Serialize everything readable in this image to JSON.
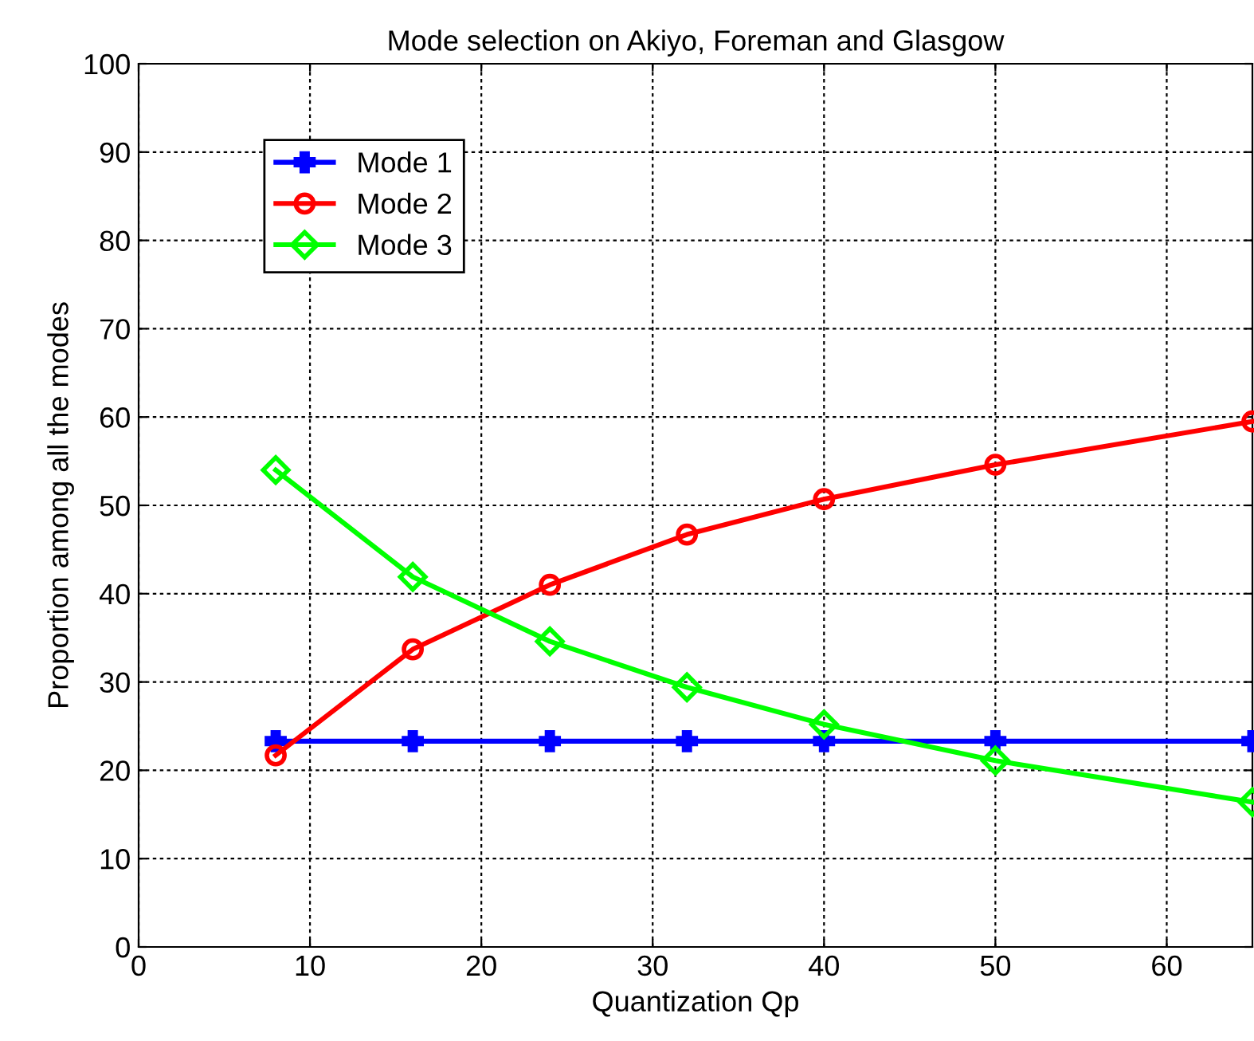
{
  "chart_data": {
    "type": "line",
    "title": "Mode selection on Akiyo, Foreman and Glasgow",
    "xlabel": "Quantization Qp",
    "ylabel": "Proportion among all the modes",
    "x": [
      8,
      16,
      24,
      32,
      40,
      50,
      65
    ],
    "series": [
      {
        "name": "Mode 1",
        "color": "#0000ff",
        "marker": "cross",
        "values": [
          23.3,
          23.3,
          23.3,
          23.3,
          23.3,
          23.3,
          23.3
        ]
      },
      {
        "name": "Mode 2",
        "color": "#ff0000",
        "marker": "circle",
        "values": [
          21.7,
          33.7,
          41.0,
          46.7,
          50.7,
          54.6,
          59.5
        ]
      },
      {
        "name": "Mode 3",
        "color": "#00ff00",
        "marker": "diamond",
        "values": [
          54.0,
          41.9,
          34.6,
          29.4,
          25.2,
          21.1,
          16.4
        ]
      }
    ],
    "xlim": [
      0,
      65
    ],
    "xticks": [
      0,
      10,
      20,
      30,
      40,
      50,
      60
    ],
    "ylim": [
      0,
      100
    ],
    "yticks": [
      0,
      10,
      20,
      30,
      40,
      50,
      60,
      70,
      80,
      90,
      100
    ],
    "grid": true,
    "legend": "top left",
    "line_style": "solid"
  }
}
